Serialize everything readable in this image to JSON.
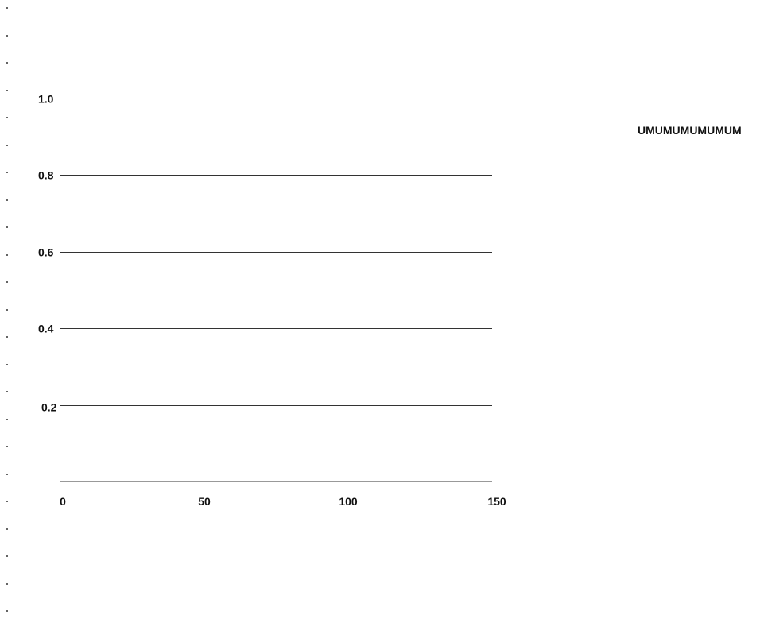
{
  "chart_data": {
    "type": "line",
    "title": "",
    "xlabel": "",
    "ylabel": "",
    "xlim": [
      0,
      150
    ],
    "ylim": [
      0.0,
      1.0
    ],
    "x_ticks": [
      {
        "value": 0,
        "label": "0"
      },
      {
        "value": 50,
        "label": "50"
      },
      {
        "value": 100,
        "label": "100"
      },
      {
        "value": 150,
        "label": "150"
      }
    ],
    "y_ticks": [
      {
        "value": 1.0,
        "label": "1.0"
      },
      {
        "value": 0.8,
        "label": "0.8"
      },
      {
        "value": 0.6,
        "label": "0.6"
      },
      {
        "value": 0.4,
        "label": "0.4"
      },
      {
        "value": 0.2,
        "label": "0.2"
      }
    ],
    "grid": "horizontal",
    "legend": {
      "placement": "right",
      "text": "UMUMUMUMUMUM"
    },
    "colors": {
      "line": "#333333",
      "text": "#111111",
      "background": "#ffffff"
    }
  }
}
